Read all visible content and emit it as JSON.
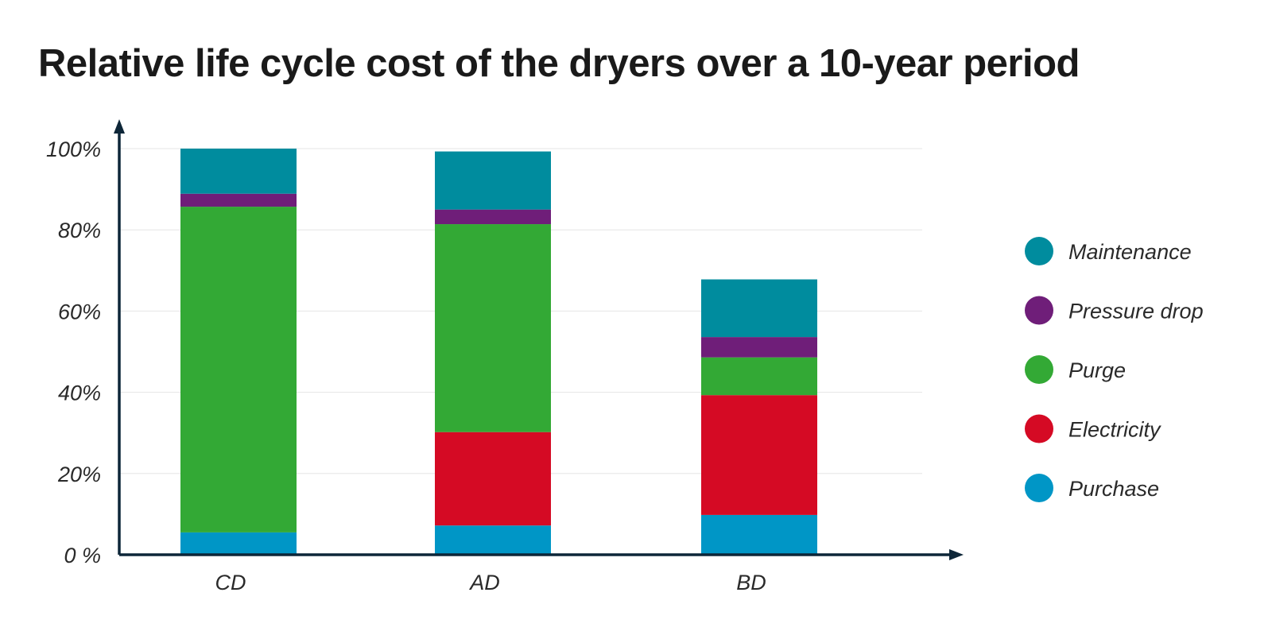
{
  "chart_data": {
    "type": "bar",
    "stacked": true,
    "title": "Relative life cycle cost of the dryers over a 10-year period",
    "xlabel": "",
    "ylabel": "",
    "ylim": [
      0,
      100
    ],
    "y_ticks": [
      0,
      20,
      40,
      60,
      80,
      100
    ],
    "y_tick_labels": [
      "0 %",
      "20%",
      "40%",
      "60%",
      "80%",
      "100%"
    ],
    "grid": true,
    "legend_position": "right",
    "categories": [
      "CD",
      "AD",
      "BD"
    ],
    "series": [
      {
        "name": "Purchase",
        "color": "#0096c6",
        "values": [
          5.5,
          7.2,
          9.8
        ]
      },
      {
        "name": "Electricity",
        "color": "#d50a24",
        "values": [
          0,
          23.0,
          29.5
        ]
      },
      {
        "name": "Purge",
        "color": "#33a935",
        "values": [
          80.2,
          51.2,
          9.3
        ]
      },
      {
        "name": "Pressure drop",
        "color": "#6f1e79",
        "values": [
          3.2,
          3.6,
          5.0
        ]
      },
      {
        "name": "Maintenance",
        "color": "#008c9e",
        "values": [
          11.1,
          14.3,
          14.2
        ]
      }
    ],
    "legend_order": [
      "Maintenance",
      "Pressure drop",
      "Purge",
      "Electricity",
      "Purchase"
    ]
  },
  "colors": {
    "axis": "#0d2638",
    "grid": "#e6e6e6"
  }
}
